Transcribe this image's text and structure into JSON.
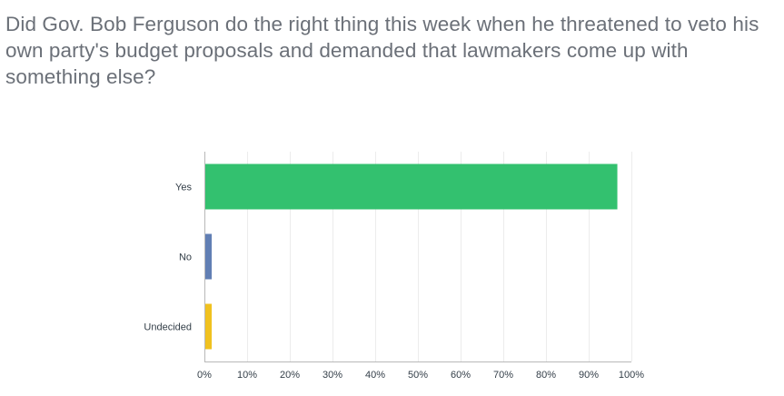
{
  "question": "Did Gov. Bob Ferguson do the right thing this week when he threatened to veto his own party's budget proposals and demanded that lawmakers come up with something else?",
  "chart_data": {
    "type": "bar",
    "orientation": "horizontal",
    "categories": [
      "Yes",
      "No",
      "Undecided"
    ],
    "values": [
      96.5,
      1.5,
      1.5
    ],
    "colors": [
      "#33c16f",
      "#617fb4",
      "#f0c11f"
    ],
    "xlim": [
      0,
      100
    ],
    "x_ticks": [
      "0%",
      "10%",
      "20%",
      "30%",
      "40%",
      "50%",
      "60%",
      "70%",
      "80%",
      "90%",
      "100%"
    ],
    "grid": true
  }
}
